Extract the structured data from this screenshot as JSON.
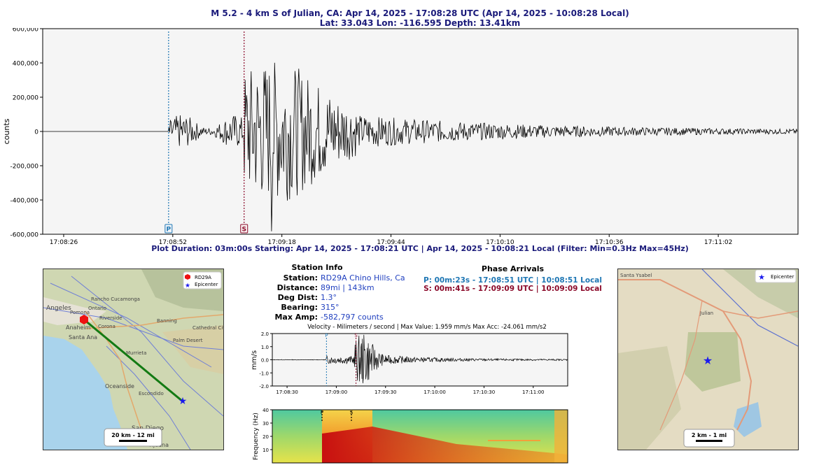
{
  "header": {
    "line1": "M 5.2 - 4 km S of Julian, CA:  Apr 14, 2025 - 17:08:28 UTC (Apr 14, 2025 - 10:08:28 Local)",
    "line2": "Lat: 33.043 Lon: -116.595 Depth: 13.41km"
  },
  "duration_line": "Plot Duration: 03m:00s  Starting: Apr 14, 2025 - 17:08:21 UTC | Apr 14, 2025 - 10:08:21 Local   (Filter:  Min=0.3Hz  Max=45Hz)",
  "colors": {
    "title": "#1a1a7a",
    "p_phase": "#1f77b4",
    "s_phase": "#8b0a2a",
    "trace": "#000000",
    "info_value": "#1f3fbf"
  },
  "chart_data": [
    {
      "id": "seismogram",
      "type": "line",
      "ylabel": "counts",
      "xlabel": "",
      "ylim": [
        -600000,
        600000
      ],
      "y_ticks": [
        600000,
        400000,
        200000,
        0,
        -200000,
        -400000,
        -600000
      ],
      "y_tick_labels": [
        "600,000",
        "400,000",
        "200,000",
        "0",
        "-200,000",
        "-400,000",
        "-600,000"
      ],
      "x_ticks": [
        "17:08:26",
        "17:08:52",
        "17:09:18",
        "17:09:44",
        "17:10:10",
        "17:10:36",
        "17:11:02"
      ],
      "x_tick_seconds": [
        5,
        31,
        57,
        83,
        109,
        135,
        161
      ],
      "x_range_seconds": [
        0,
        180
      ],
      "p_arrival_seconds": 30,
      "s_arrival_seconds": 48,
      "phase_labels": [
        "P",
        "S"
      ],
      "max_amp": -582797,
      "grid": false
    },
    {
      "id": "velocity",
      "type": "line",
      "title": "Velocity - Milimeters / second | Max Value: 1.959 mm/s Max Acc: -24.061 mm/s2",
      "ylabel": "mm/s",
      "ylim": [
        -2.0,
        2.0
      ],
      "y_ticks": [
        2.0,
        1.0,
        0.0,
        -1.0,
        -2.0
      ],
      "y_tick_labels": [
        "2.0",
        "1.0",
        "0.0",
        "-1.0",
        "-2.0"
      ],
      "x_ticks": [
        "17:08:30",
        "17:09:00",
        "17:09:30",
        "17:10:00",
        "17:10:30",
        "17:11:00"
      ],
      "x_tick_seconds": [
        9,
        39,
        69,
        99,
        129,
        159
      ],
      "x_range_seconds": [
        0,
        180
      ],
      "max_value": 1.959,
      "phase_labels": [
        "P",
        "S"
      ]
    },
    {
      "id": "spectrogram",
      "type": "heatmap",
      "ylabel": "Frequency (Hz)",
      "ylim": [
        0,
        40
      ],
      "y_ticks": [
        40,
        30,
        20,
        10
      ],
      "y_tick_labels": [
        "40",
        "30",
        "20",
        "10"
      ],
      "phase_labels": [
        "P",
        "S"
      ]
    }
  ],
  "station_info": {
    "title": "Station Info",
    "rows": [
      {
        "label": "Station:",
        "value": "RD29A Chino Hills, Ca"
      },
      {
        "label": "Distance:",
        "value": "89mi | 143km"
      },
      {
        "label": "Deg Dist:",
        "value": "1.3°"
      },
      {
        "label": "Bearing:",
        "value": "315°"
      },
      {
        "label": "Max Amp:",
        "value": "-582,797 counts"
      }
    ]
  },
  "phase_arrivals": {
    "title": "Phase Arrivals",
    "p": "P: 00m:23s - 17:08:51 UTC | 10:08:51 Local",
    "s": "S: 00m:41s - 17:09:09 UTC | 10:09:09 Local"
  },
  "map_left": {
    "legend": [
      "RD29A",
      "Epicenter"
    ],
    "scale": "20 km - 12 mi",
    "places": [
      "Angeles",
      "Pomona",
      "Rancho Cucamonga",
      "Ontario",
      "Riverside",
      "Anaheim",
      "Corona",
      "Banning",
      "Santa Ana",
      "Cathedral City",
      "Palm Desert",
      "Murrieta",
      "Oceanside",
      "Escondido",
      "San Diego",
      "Tijuana"
    ]
  },
  "map_right": {
    "legend": [
      "Epicenter"
    ],
    "scale": "2 km - 1 mi",
    "places": [
      "Santa Ysabel",
      "Julian"
    ]
  }
}
